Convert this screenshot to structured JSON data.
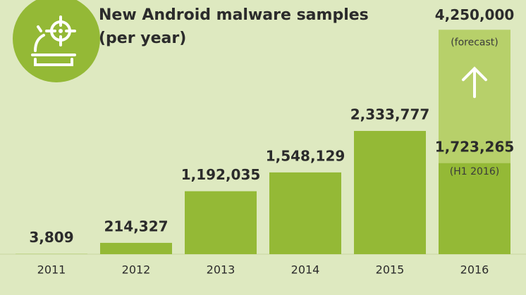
{
  "chart_data": {
    "type": "bar",
    "title": "New Android malware samples",
    "subtitle": "(per year)",
    "categories": [
      "2011",
      "2012",
      "2013",
      "2014",
      "2015",
      "2016"
    ],
    "values": [
      3809,
      214327,
      1192035,
      1548129,
      2333777,
      1723265
    ],
    "value_labels": [
      "3,809",
      "214,327",
      "1,192,035",
      "1,548,129",
      "2,333,777",
      "1,723,265"
    ],
    "value_notes": [
      null,
      null,
      null,
      null,
      null,
      "(H1 2016)"
    ],
    "color": "#94b936",
    "forecast": {
      "category": "2016",
      "value": 4250000,
      "label": "4,250,000",
      "note": "(forecast)",
      "color": "#b7d06a"
    },
    "ylim": [
      0,
      4400000
    ]
  }
}
